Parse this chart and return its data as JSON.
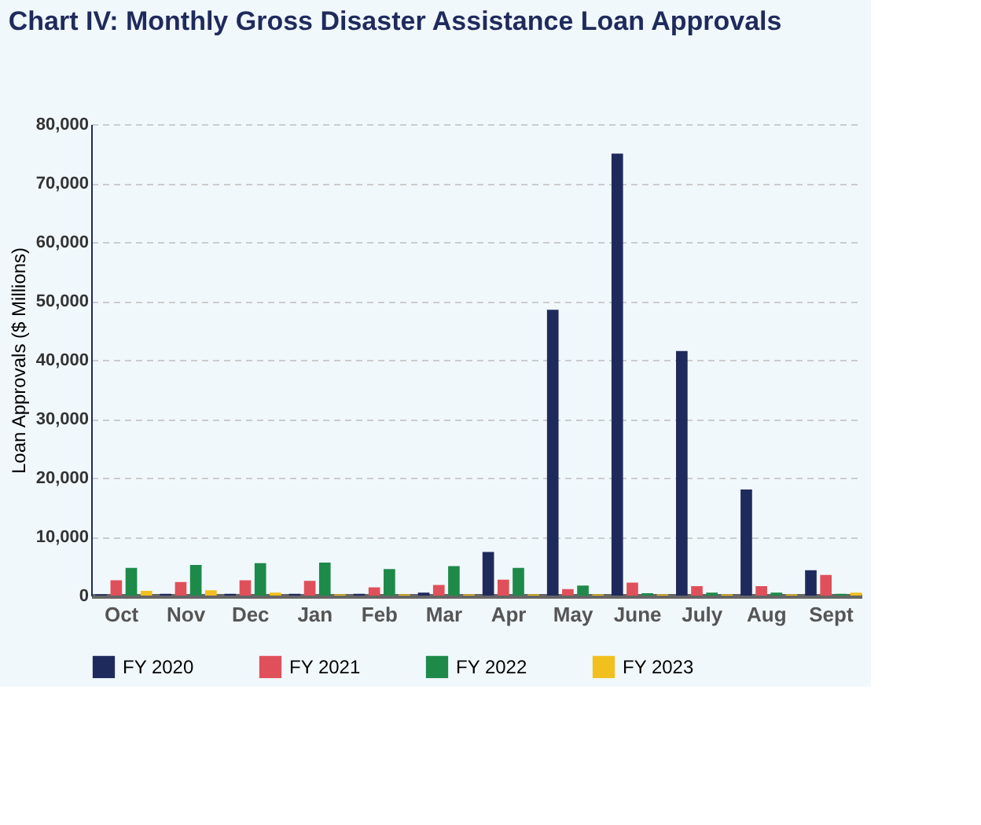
{
  "chart_data": {
    "type": "bar",
    "title": "Chart IV: Monthly Gross Disaster Assistance Loan Approvals",
    "ylabel": "Loan Approvals ($ Millions)",
    "categories": [
      "Oct",
      "Nov",
      "Dec",
      "Jan",
      "Feb",
      "Mar",
      "Apr",
      "May",
      "June",
      "July",
      "Aug",
      "Sept"
    ],
    "series": [
      {
        "name": "FY 2020",
        "color": "#1f2a5c",
        "values": [
          200,
          300,
          300,
          300,
          300,
          500,
          7400,
          48500,
          75000,
          41500,
          18000,
          4300
        ]
      },
      {
        "name": "FY 2021",
        "color": "#e0505a",
        "values": [
          2600,
          2300,
          2600,
          2500,
          1400,
          1800,
          2700,
          1100,
          2200,
          1600,
          1600,
          3500
        ]
      },
      {
        "name": "FY 2022",
        "color": "#1e8a4a",
        "values": [
          4700,
          5200,
          5500,
          5600,
          4500,
          5000,
          4700,
          1700,
          400,
          500,
          500,
          300
        ]
      },
      {
        "name": "FY 2023",
        "color": "#f2c01e",
        "values": [
          800,
          900,
          500,
          200,
          200,
          200,
          200,
          200,
          200,
          200,
          200,
          500
        ]
      }
    ],
    "ylim": [
      0,
      80000
    ],
    "yticks": [
      0,
      {
        "value": 10000,
        "label": "10,000"
      },
      {
        "value": 20000,
        "label": "20,000"
      },
      {
        "value": 30000,
        "label": "30,000"
      },
      {
        "value": 40000,
        "label": "40,000"
      },
      {
        "value": 50000,
        "label": "50,000"
      },
      {
        "value": 60000,
        "label": "60,000"
      },
      {
        "value": 70000,
        "label": "70,000"
      },
      {
        "value": 80000,
        "label": "80,000"
      }
    ],
    "grid": "y",
    "legend": "bottom"
  }
}
